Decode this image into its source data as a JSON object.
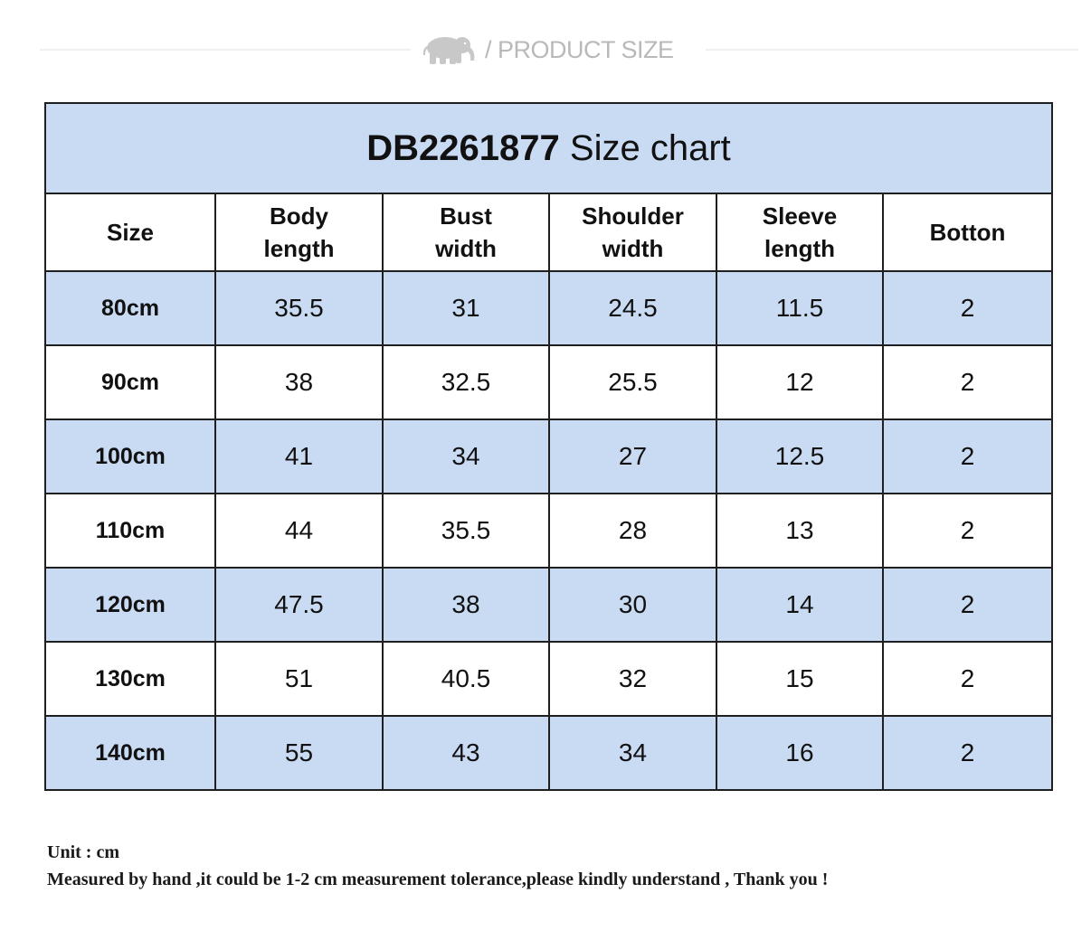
{
  "header": {
    "logo_icon": "elephant-icon",
    "title": "/ PRODUCT SIZE"
  },
  "size_chart": {
    "title_code": "DB2261877",
    "title_suffix": "Size chart",
    "columns": [
      [
        "Size"
      ],
      [
        "Body",
        "length"
      ],
      [
        "Bust",
        "width"
      ],
      [
        "Shoulder",
        "width"
      ],
      [
        "Sleeve",
        "length"
      ],
      [
        "Botton"
      ]
    ],
    "rows": [
      [
        "80cm",
        "35.5",
        "31",
        "24.5",
        "11.5",
        "2"
      ],
      [
        "90cm",
        "38",
        "32.5",
        "25.5",
        "12",
        "2"
      ],
      [
        "100cm",
        "41",
        "34",
        "27",
        "12.5",
        "2"
      ],
      [
        "110cm",
        "44",
        "35.5",
        "28",
        "13",
        "2"
      ],
      [
        "120cm",
        "47.5",
        "38",
        "30",
        "14",
        "2"
      ],
      [
        "130cm",
        "51",
        "40.5",
        "32",
        "15",
        "2"
      ],
      [
        "140cm",
        "55",
        "43",
        "34",
        "16",
        "2"
      ]
    ]
  },
  "notes": {
    "unit": "Unit : cm",
    "tolerance": "Measured by hand ,it could be 1-2 cm measurement tolerance,please kindly understand , Thank you !"
  },
  "colors": {
    "shaded_fill": "#c9daf3",
    "border": "#1f1f1f",
    "header_text": "#b9b9b9"
  }
}
